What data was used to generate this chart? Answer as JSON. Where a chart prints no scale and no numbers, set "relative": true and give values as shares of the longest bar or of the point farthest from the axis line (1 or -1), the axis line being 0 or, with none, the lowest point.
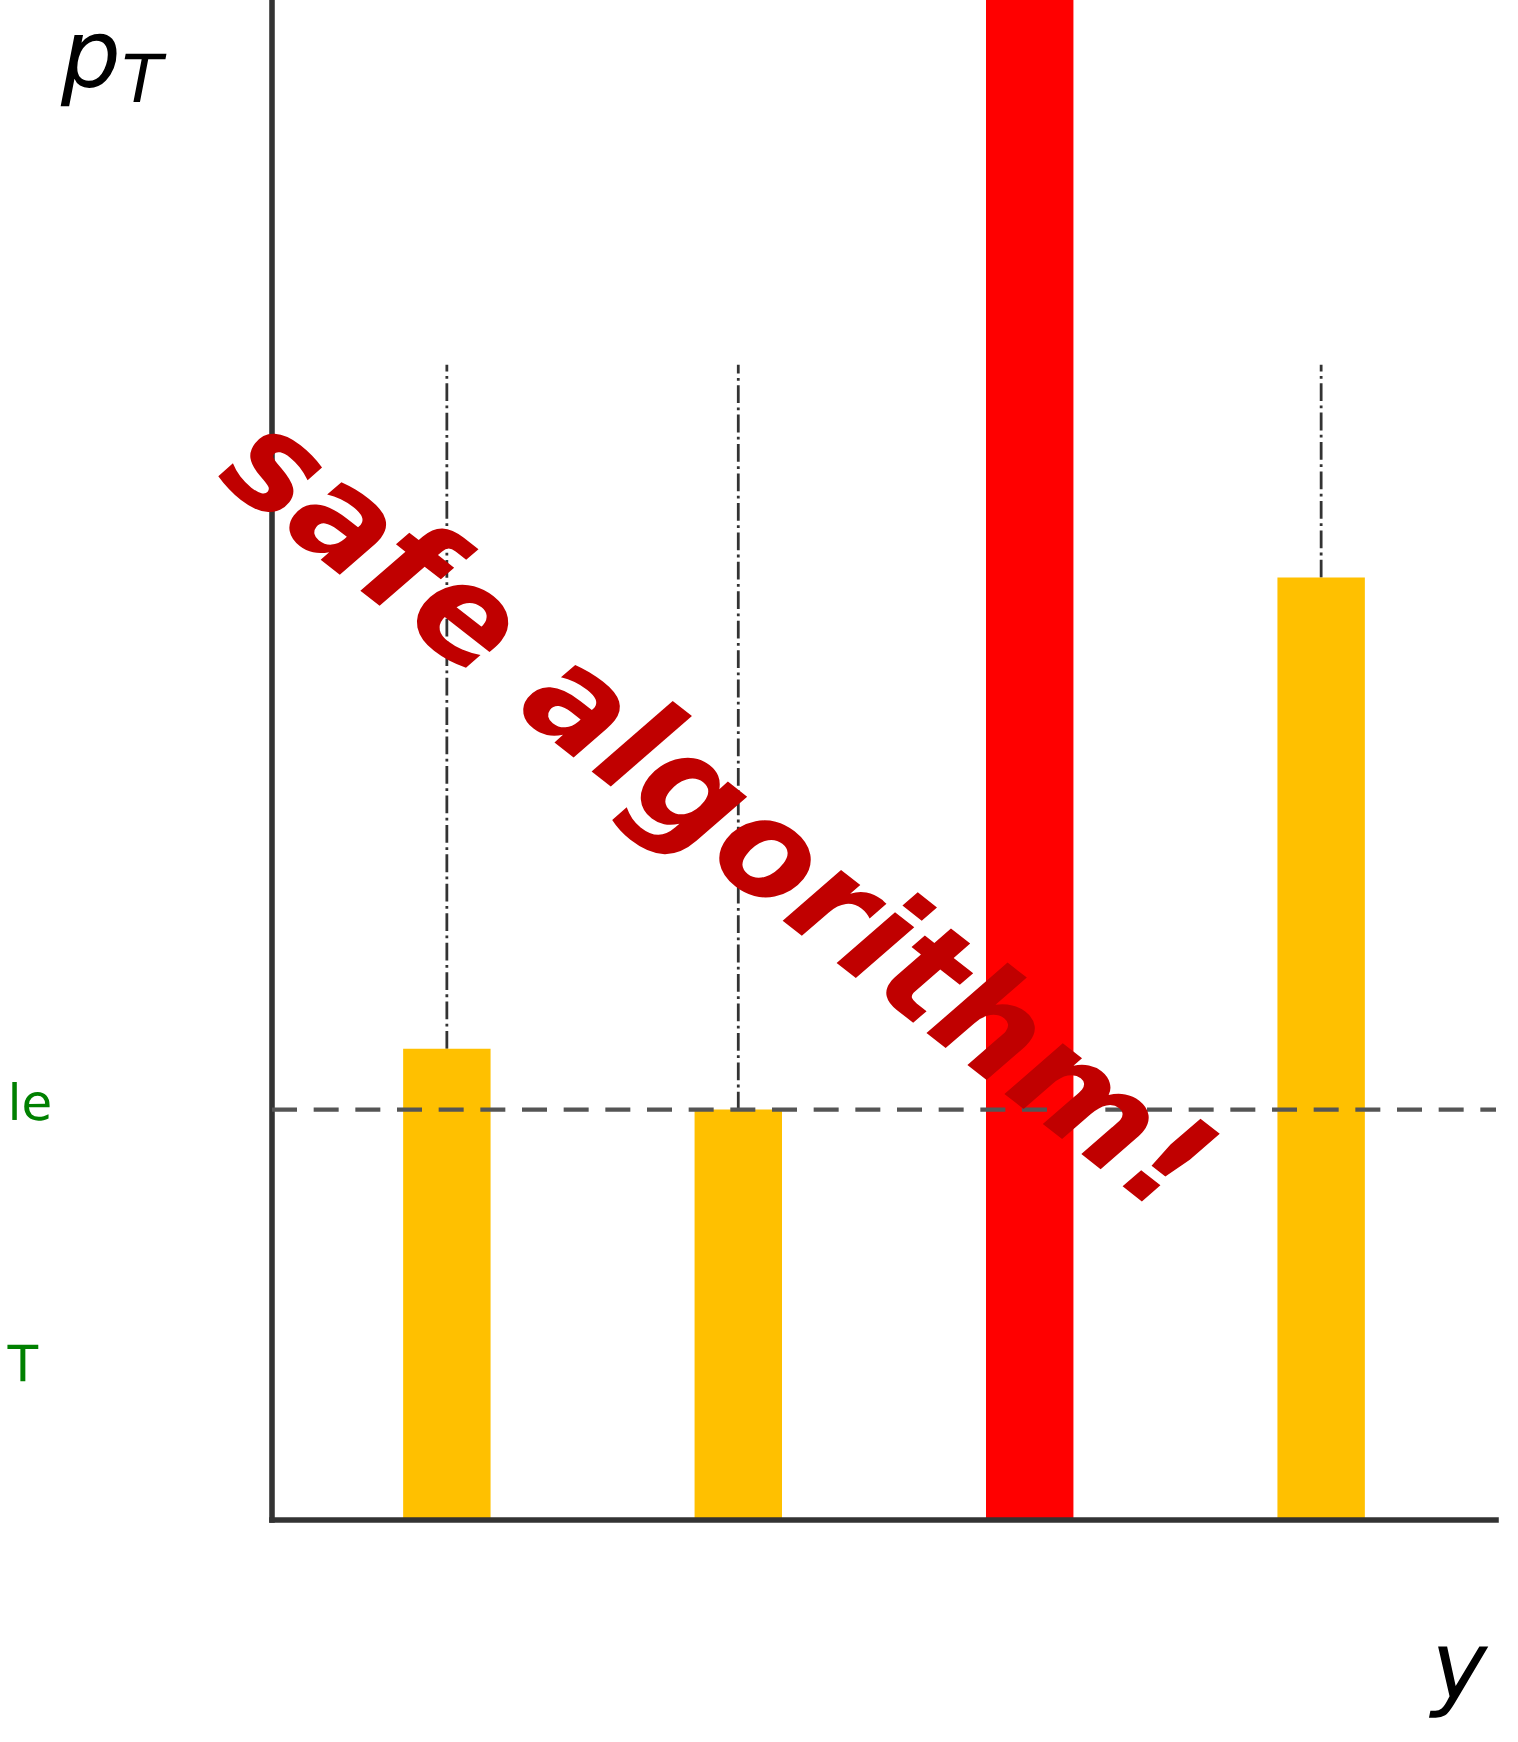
{
  "chart_data": {
    "type": "bar",
    "relative": true,
    "xlabel": "y",
    "ylabel": "p$_{T}$",
    "categories": [
      null,
      null,
      null,
      null
    ],
    "values": [
      0.31,
      0.27,
      1,
      0.62
    ],
    "colors": [
      "#ffc000",
      "#ffc000",
      "#ff0000",
      "#ffc000"
    ],
    "ref_lines": [
      {
        "axis": "y",
        "value": 0.27,
        "color": "#555555",
        "line_style": "dashed"
      }
    ],
    "annotations": [
      "safe algorithm!",
      "le",
      "T"
    ],
    "grid": false,
    "legend": false
  }
}
